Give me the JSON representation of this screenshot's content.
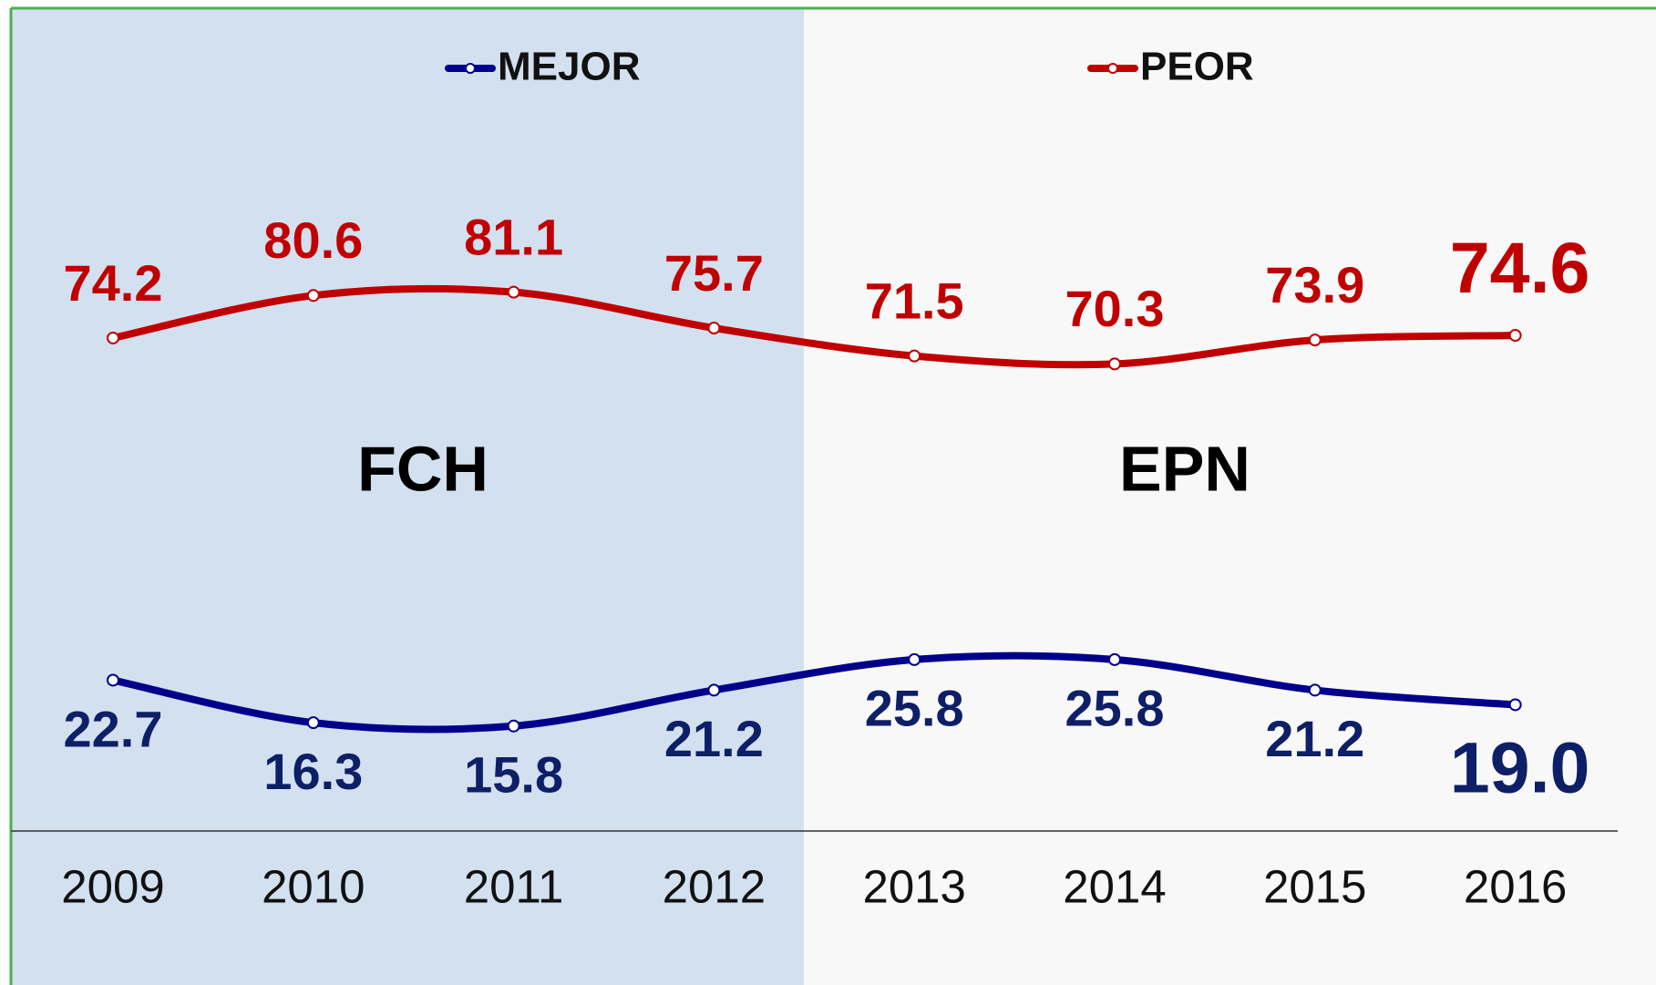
{
  "chart_data": {
    "type": "line",
    "categories": [
      "2009",
      "2010",
      "2011",
      "2012",
      "2013",
      "2014",
      "2015",
      "2016"
    ],
    "series": [
      {
        "name": "MEJOR",
        "color": "#00008b",
        "values": [
          22.7,
          16.3,
          15.8,
          21.2,
          25.8,
          25.8,
          21.2,
          19.0
        ],
        "value_labels": [
          "22.7",
          "16.3",
          "15.8",
          "21.2",
          "25.8",
          "25.8",
          "21.2",
          "19.0"
        ]
      },
      {
        "name": "PEOR",
        "color": "#c00000",
        "values": [
          74.2,
          80.6,
          81.1,
          75.7,
          71.5,
          70.3,
          73.9,
          74.6
        ]
      }
    ],
    "ylim": [
      0,
      120
    ],
    "annotations": [
      "FCH",
      "EPN"
    ],
    "legend": "top"
  }
}
